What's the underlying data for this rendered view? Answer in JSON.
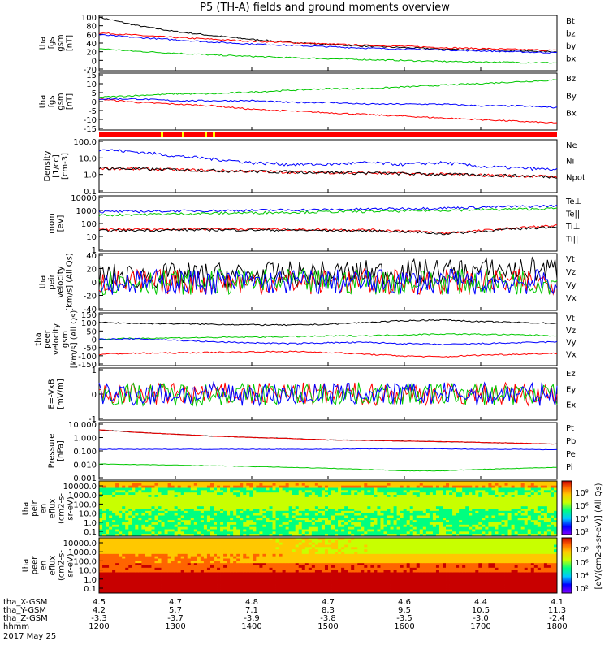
{
  "title": "P5 (TH-A) fields and ground moments overview",
  "chart_data": {
    "type": "line",
    "panels": [
      {
        "id": "fgs-gsm",
        "ylabel": [
          "tha",
          "fgs",
          "gsm",
          "[nT]"
        ],
        "yticks": [
          "100",
          "80",
          "60",
          "40",
          "20",
          "0",
          "-20"
        ],
        "ylim": [
          -20,
          100
        ],
        "series": [
          {
            "name": "Bt",
            "color": "#000000",
            "values": [
              96,
              78,
              65,
              56,
              48,
              42,
              37,
              33,
              30,
              27,
              25,
              23,
              21
            ]
          },
          {
            "name": "bz",
            "color": "#ff0000",
            "values": [
              62,
              57,
              52,
              48,
              44,
              41,
              38,
              35,
              33,
              30,
              28,
              26,
              24
            ]
          },
          {
            "name": "by",
            "color": "#00c800",
            "values": [
              28,
              22,
              18,
              14,
              11,
              8,
              6,
              4,
              2,
              0,
              -1,
              -2,
              -3
            ]
          },
          {
            "name": "bx",
            "color": "#0000ff",
            "values": [
              58,
              52,
              47,
              42,
              38,
              35,
              32,
              29,
              27,
              25,
              23,
              21,
              19
            ]
          }
        ]
      },
      {
        "id": "fgs-gsm-detrended",
        "ylabel": [
          "tha",
          "fgs",
          "gsm",
          "[nT]"
        ],
        "yticks": [
          "15",
          "10",
          "5",
          "0",
          "-5",
          "-10",
          "-15"
        ],
        "ylim": [
          -18,
          15
        ],
        "series": [
          {
            "name": "Bz",
            "color": "#ff0000",
            "values": [
              0,
              -2,
              -3,
              -4,
              -6,
              -7,
              -8,
              -9,
              -10,
              -11,
              -12,
              -13,
              -14
            ]
          },
          {
            "name": "By",
            "color": "#00c800",
            "values": [
              1,
              2,
              3,
              3,
              4,
              5,
              6,
              6,
              7,
              8,
              9,
              10,
              11
            ]
          },
          {
            "name": "Bx",
            "color": "#0000ff",
            "values": [
              0,
              0,
              -1,
              -1,
              -1,
              -2,
              -2,
              -3,
              -3,
              -3,
              -4,
              -4,
              -5
            ]
          }
        ]
      },
      {
        "id": "density",
        "ylabel": [
          "Density",
          "[1/cc]",
          "[cm-3]"
        ],
        "yticks": [
          "100.0",
          "10.0",
          "1.0",
          "0.1"
        ],
        "ylim": [
          0.1,
          100
        ],
        "log": true,
        "series": [
          {
            "name": "Ne",
            "color": "#ff0000",
            "values": [
              2.5,
              2.2,
              2.0,
              1.8,
              1.6,
              1.5,
              1.4,
              1.3,
              1.2,
              1.1,
              1.0,
              0.9,
              0.8
            ]
          },
          {
            "name": "Ni",
            "color": "#000000",
            "values": [
              2.5,
              2.2,
              2.0,
              1.8,
              1.6,
              1.5,
              1.4,
              1.3,
              1.2,
              1.1,
              1.0,
              0.9,
              0.8
            ]
          },
          {
            "name": "Npot",
            "color": "#0000ff",
            "values": [
              28,
              20,
              12,
              8,
              5,
              4,
              4,
              5,
              4,
              5,
              3,
              2.5,
              2
            ]
          }
        ]
      },
      {
        "id": "temperature",
        "ylabel": [
          "mom",
          "[eV]"
        ],
        "yticks": [
          "10000",
          "1000",
          "100",
          "10",
          "1"
        ],
        "ylim": [
          1,
          10000
        ],
        "log": true,
        "series": [
          {
            "name": "Te⊥",
            "color": "#ff0000",
            "values": [
              35,
              38,
              40,
              42,
              40,
              38,
              36,
              35,
              30,
              20,
              30,
              50,
              70
            ]
          },
          {
            "name": "Te||",
            "color": "#000000",
            "values": [
              30,
              32,
              34,
              35,
              34,
              33,
              31,
              30,
              26,
              18,
              26,
              42,
              60
            ]
          },
          {
            "name": "Ti⊥",
            "color": "#0000ff",
            "values": [
              700,
              750,
              800,
              850,
              900,
              950,
              1000,
              1100,
              1200,
              1300,
              1500,
              1700,
              1900
            ]
          },
          {
            "name": "Ti||",
            "color": "#00c800",
            "values": [
              400,
              450,
              500,
              550,
              600,
              650,
              700,
              750,
              800,
              900,
              1000,
              1100,
              1200
            ]
          }
        ]
      },
      {
        "id": "peir-velocity",
        "ylabel": [
          "tha",
          "peir",
          "velocity",
          "[km/s] (All Qs)"
        ],
        "yticks": [
          "40",
          "20",
          "0",
          "-20",
          "-40"
        ],
        "ylim": [
          -40,
          40
        ],
        "series": [
          {
            "name": "Vt",
            "color": "#000000",
            "values": [
              8,
              8,
              9,
              10,
              10,
              11,
              12,
              13,
              14,
              15,
              16,
              17,
              18
            ]
          },
          {
            "name": "Vz",
            "color": "#ff0000",
            "values": [
              0,
              0,
              0,
              0,
              0,
              0,
              0,
              0,
              0,
              0,
              0,
              0,
              0
            ]
          },
          {
            "name": "Vy",
            "color": "#00c800",
            "values": [
              0,
              0,
              0,
              0,
              0,
              0,
              0,
              0,
              0,
              0,
              0,
              0,
              0
            ]
          },
          {
            "name": "Vx",
            "color": "#0000ff",
            "values": [
              0,
              0,
              0,
              0,
              0,
              0,
              0,
              0,
              0,
              0,
              0,
              0,
              0
            ]
          }
        ]
      },
      {
        "id": "peer-velocity",
        "ylabel": [
          "tha",
          "peer",
          "velocity",
          "gsm",
          "[km/s] (All Qs)"
        ],
        "yticks": [
          "150",
          "100",
          "50",
          "0",
          "-50",
          "-100",
          "-150"
        ],
        "ylim": [
          -150,
          150
        ],
        "series": [
          {
            "name": "Vt",
            "color": "#000000",
            "values": [
              95,
              90,
              88,
              85,
              82,
              80,
              85,
              95,
              105,
              110,
              100,
              95,
              90
            ]
          },
          {
            "name": "Vz",
            "color": "#ff0000",
            "values": [
              -85,
              -80,
              -78,
              -75,
              -72,
              -70,
              -75,
              -85,
              -95,
              -100,
              -90,
              -85,
              -80
            ]
          },
          {
            "name": "Vy",
            "color": "#00c800",
            "values": [
              0,
              5,
              8,
              10,
              12,
              15,
              18,
              20,
              25,
              30,
              28,
              25,
              20
            ]
          },
          {
            "name": "Vx",
            "color": "#0000ff",
            "values": [
              0,
              2,
              -5,
              -15,
              -20,
              -25,
              -20,
              -18,
              -25,
              -30,
              -25,
              -20,
              -15
            ]
          }
        ]
      },
      {
        "id": "efield",
        "ylabel": [
          "E=-VxB",
          "[mV/m]"
        ],
        "yticks": [
          "1",
          "0",
          "-1"
        ],
        "ylim": [
          -1.5,
          1.5
        ],
        "series": [
          {
            "name": "Ez",
            "color": "#ff0000",
            "values": [
              0,
              0,
              0,
              0,
              0,
              0,
              0,
              0,
              0,
              0,
              0,
              0,
              0
            ]
          },
          {
            "name": "Ey",
            "color": "#00c800",
            "values": [
              0,
              0,
              0,
              0,
              0,
              0,
              0,
              0,
              0,
              0,
              0,
              0,
              0
            ]
          },
          {
            "name": "Ex",
            "color": "#0000ff",
            "values": [
              0,
              0,
              0,
              0,
              0,
              0,
              0,
              0,
              0,
              0,
              0,
              0,
              0
            ]
          }
        ]
      },
      {
        "id": "pressure",
        "ylabel": [
          "Pressure",
          "[nPa]"
        ],
        "yticks": [
          "10.000",
          "1.000",
          "0.100",
          "0.010",
          "0.001"
        ],
        "ylim": [
          0.001,
          10
        ],
        "log": true,
        "series": [
          {
            "name": "Pt",
            "color": "#000000",
            "values": [
              3.0,
              2.0,
              1.5,
              1.1,
              0.9,
              0.75,
              0.6,
              0.55,
              0.5,
              0.45,
              0.4,
              0.35,
              0.3
            ]
          },
          {
            "name": "Pb",
            "color": "#ff0000",
            "values": [
              3.0,
              2.0,
              1.5,
              1.1,
              0.9,
              0.75,
              0.6,
              0.55,
              0.5,
              0.45,
              0.4,
              0.35,
              0.3
            ]
          },
          {
            "name": "Pe",
            "color": "#00c800",
            "values": [
              0.012,
              0.011,
              0.01,
              0.009,
              0.008,
              0.007,
              0.006,
              0.005,
              0.004,
              0.004,
              0.005,
              0.006,
              0.007
            ]
          },
          {
            "name": "Pi",
            "color": "#0000ff",
            "values": [
              0.13,
              0.13,
              0.13,
              0.13,
              0.13,
              0.13,
              0.13,
              0.14,
              0.14,
              0.14,
              0.13,
              0.13,
              0.12
            ]
          }
        ]
      }
    ],
    "spectrograms": [
      {
        "id": "peir-en-eflux",
        "type": "heatmap",
        "ylabel": [
          "tha",
          "peir",
          "en",
          "eflux",
          "(cm2-s-",
          "sr-eV)"
        ],
        "yticks": [
          "10000.0",
          "1000.0",
          "100.0",
          "10.0",
          "1.0",
          "0.1"
        ]
      },
      {
        "id": "peer-en-eflux",
        "type": "heatmap",
        "ylabel": [
          "tha",
          "peer",
          "en",
          "eflux",
          "(cm2-s-",
          "sr-eV)"
        ],
        "yticks": [
          "10000.0",
          "1000.0",
          "100.0",
          "10.0",
          "1.0",
          "0.1"
        ]
      }
    ],
    "colorbar": {
      "label": "[eV/(cm2-s-sr-eV)] (All Qs)",
      "ticks_top": [
        "10⁸",
        "10⁶",
        "10⁴",
        "10²"
      ],
      "ticks_bottom": [
        "10⁸",
        "10⁶",
        "10⁴",
        "10²"
      ]
    },
    "xaxis": {
      "rows": [
        {
          "label": "tha_X-GSM",
          "values": [
            "4.5",
            "4.7",
            "4.8",
            "4.7",
            "4.6",
            "4.4",
            "4.1"
          ]
        },
        {
          "label": "tha_Y-GSM",
          "values": [
            "4.2",
            "5.7",
            "7.1",
            "8.3",
            "9.5",
            "10.5",
            "11.3"
          ]
        },
        {
          "label": "tha_Z-GSM",
          "values": [
            "-3.3",
            "-3.7",
            "-3.9",
            "-3.8",
            "-3.5",
            "-3.0",
            "-2.4"
          ]
        },
        {
          "label": "hhmm",
          "values": [
            "1200",
            "1300",
            "1400",
            "1500",
            "1600",
            "1700",
            "1800"
          ]
        }
      ],
      "date": "2017 May 25"
    }
  }
}
